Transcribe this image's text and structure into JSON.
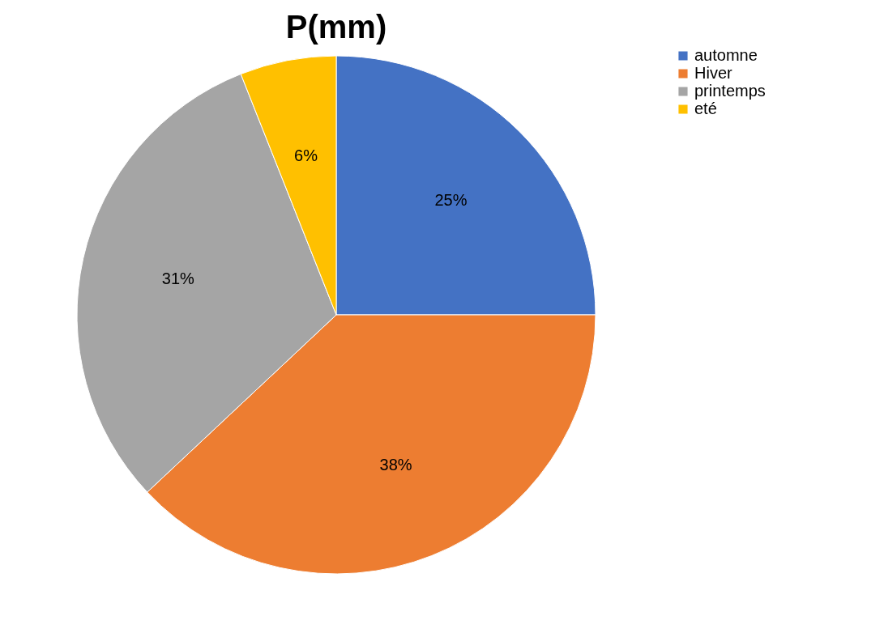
{
  "chart_data": {
    "type": "pie",
    "title": "P(mm)",
    "categories": [
      "automne",
      "Hiver",
      "printemps",
      "eté"
    ],
    "values": [
      25,
      38,
      31,
      6
    ],
    "colors": [
      "#4472c4",
      "#ed7d31",
      "#a5a5a5",
      "#ffc000"
    ],
    "value_labels": [
      "25%",
      "38%",
      "31%",
      "6%"
    ],
    "legend": "right"
  }
}
